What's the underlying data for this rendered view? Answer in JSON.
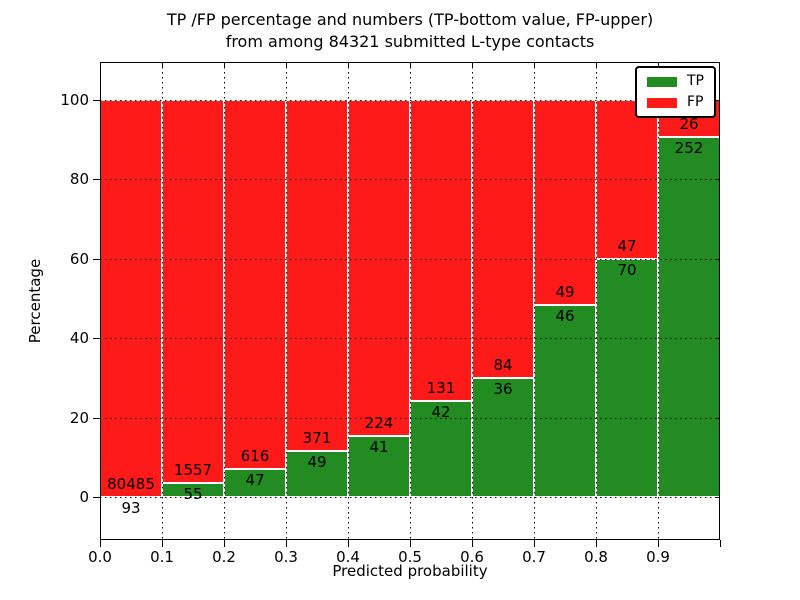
{
  "figure": {
    "title_line1": "TP /FP percentage and numbers (TP-bottom value, FP-upper)",
    "title_line2": "from among 84321 submitted L-type contacts"
  },
  "chart_data": {
    "type": "bar",
    "stacked": true,
    "normalized_to_percent": true,
    "title": "TP /FP percentage and numbers (TP-bottom value, FP-upper) from among 84321 submitted L-type contacts",
    "total_contacts": 84321,
    "xlabel": "Predicted probability",
    "ylabel": "Percentage",
    "x_tick_labels": [
      "0.0",
      "0.1",
      "0.2",
      "0.3",
      "0.4",
      "0.5",
      "0.6",
      "0.7",
      "0.8",
      "0.9"
    ],
    "y_tick_values": [
      0,
      20,
      40,
      60,
      80,
      100
    ],
    "ylim_percent": [
      0,
      100
    ],
    "categories": [
      "0.0-0.1",
      "0.1-0.2",
      "0.2-0.3",
      "0.3-0.4",
      "0.4-0.5",
      "0.5-0.6",
      "0.6-0.7",
      "0.7-0.8",
      "0.8-0.9",
      "0.9-1.0"
    ],
    "series": [
      {
        "name": "TP",
        "color": "#228B22",
        "counts": [
          93,
          55,
          47,
          49,
          41,
          42,
          36,
          46,
          70,
          252
        ],
        "percent_of_bin": [
          0.12,
          3.41,
          7.09,
          11.67,
          15.47,
          24.28,
          30.0,
          48.42,
          59.83,
          90.65
        ]
      },
      {
        "name": "FP",
        "color": "#ff1a1a",
        "counts": [
          80485,
          1557,
          616,
          371,
          224,
          131,
          84,
          49,
          47,
          26
        ],
        "percent_of_bin": [
          99.88,
          96.59,
          92.91,
          88.33,
          84.53,
          75.72,
          70.0,
          51.58,
          40.17,
          9.35
        ]
      }
    ],
    "legend": {
      "position": "upper right",
      "entries": [
        "TP",
        "FP"
      ]
    },
    "grid": "dotted black, drawn over bars",
    "bar_edge_color": "#ffffff"
  }
}
